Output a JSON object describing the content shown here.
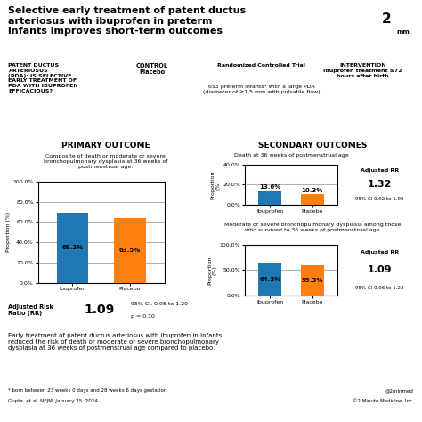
{
  "title": "Selective early treatment of patent ductus\narteriosus with ibuprofen in preterm\ninfants improves short-term outcomes",
  "annotations": [
    "2",
    "mm",
    "PATENT DUCTUS\nARTERIOSUS\n(PDA): IS SELECTIVE\nEARLY TREATMENT OF\nPDA WITH IBUPROFEN\nEFFICACIOUS?",
    "CONTROL\nPlacebo",
    "Randomized Controlled Trial",
    "INTERVENTION\nIbuprofen treatment ≤72\nhours after birth",
    "653 preterm infants* with a large PDA\n(diameter of ≥1.5 mm with pulsatile flow)",
    "SECONDARY OUTCOMES",
    "Early treatment of patent ductus arteriosus with ibuprofen in infants\nreduced the risk of death or moderate or severe bronchopulmonary\ndysplasia at 36 weeks of postmenstrual age compared to placebo.",
    "* born between 23 weeks 0 days and 28 weeks 6 days gestation",
    "Gupta, et al. NEJM. January 25, 2024",
    "@2minmed",
    "©2 Minute Medicine, Inc."
  ],
  "chart_data": [
    {
      "type": "bar",
      "title": "PRIMARY OUTCOME",
      "subtitle": "Composite of death or moderate or severe\nbronchopulmonary dysplasia at 36 weeks of\npostmenstrual age.",
      "categories": [
        "Ibuprofen",
        "Placebo"
      ],
      "values": [
        69.2,
        63.5
      ],
      "value_labels": [
        "69.2%",
        "63.5%"
      ],
      "data_labels": true,
      "colors": [
        "#1f77b4",
        "#ff7f0e"
      ],
      "ylabel": "Proportion (%)",
      "ylim": [
        0,
        100
      ],
      "yticks": [
        {
          "value": 0,
          "label": "0.0%"
        },
        {
          "value": 20,
          "label": "20.0%"
        },
        {
          "value": 40,
          "label": "40.0%"
        },
        {
          "value": 60,
          "label": "60.0%"
        },
        {
          "value": 80,
          "label": "80.0%"
        },
        {
          "value": 100,
          "label": "100.0%"
        }
      ],
      "grid": true,
      "annotations": [
        "Adjusted Risk\nRatio (RR)",
        "1.09",
        "95% CI, 0.98 to 1.20",
        "p = 0.10"
      ]
    },
    {
      "type": "bar",
      "title": "Death at 36 weeks of postmenstrual age",
      "categories": [
        "Ibuprofen",
        "Placebo"
      ],
      "values": [
        13.6,
        10.3
      ],
      "value_labels": [
        "13.6%",
        "10.3%"
      ],
      "data_labels": true,
      "colors": [
        "#1f77b4",
        "#ff7f0e"
      ],
      "ylabel": "Proportion\n(%)",
      "ylim": [
        0,
        40
      ],
      "yticks": [
        {
          "value": 0,
          "label": "0.0%"
        },
        {
          "value": 20,
          "label": "20.0%"
        },
        {
          "value": 40,
          "label": "40.0%"
        }
      ],
      "grid": true,
      "annotations": [
        "Adjusted RR",
        "1.32",
        "95% CI 0.92 to 1.90"
      ]
    },
    {
      "type": "bar",
      "title": "Moderate or severe bronchopulmonary dysplasia among those\nwho survived to 36 weeks of postmenstrual age",
      "categories": [
        "Ibuprofen",
        "Placebo"
      ],
      "values": [
        64.2,
        59.3
      ],
      "value_labels": [
        "64.2%",
        "59.3%"
      ],
      "data_labels": true,
      "colors": [
        "#1f77b4",
        "#ff7f0e"
      ],
      "ylabel": "Proportion\n(%)",
      "ylim": [
        0,
        100
      ],
      "yticks": [
        {
          "value": 0,
          "label": "0.0%"
        },
        {
          "value": 50,
          "label": "50.0%"
        },
        {
          "value": 100,
          "label": "100.0%"
        }
      ],
      "grid": true,
      "annotations": [
        "Adjusted RR",
        "1.09",
        "95% CI 0.96 to 1.23"
      ]
    }
  ]
}
